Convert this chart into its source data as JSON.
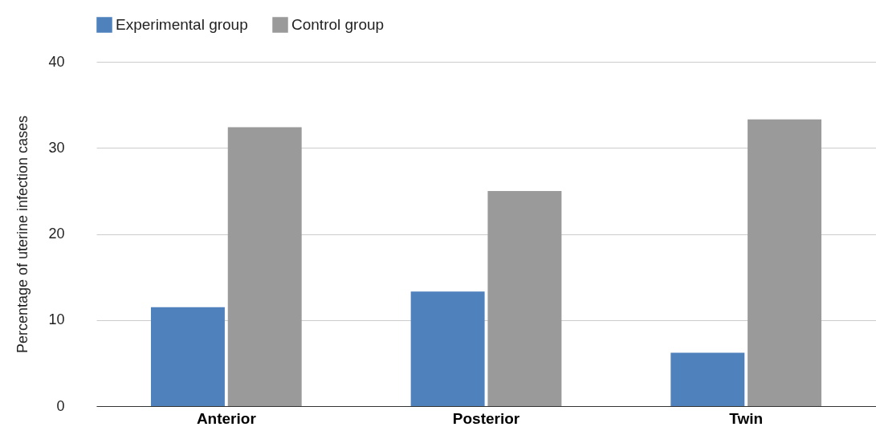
{
  "chart_data": {
    "type": "bar",
    "ylabel": "Percentage of uterine infection cases",
    "categories": [
      "Anterior",
      "Posterior",
      "Twin"
    ],
    "series": [
      {
        "name": "Experimental group",
        "color": "#4f81bd",
        "values": [
          11.5,
          13.3,
          6.2
        ]
      },
      {
        "name": "Control group",
        "color": "#9a9a9a",
        "values": [
          32.4,
          25.0,
          33.3
        ]
      }
    ],
    "ylim": [
      0,
      40
    ],
    "yticks": [
      0,
      10,
      20,
      30,
      40
    ],
    "grid": "y",
    "legend": "top"
  }
}
